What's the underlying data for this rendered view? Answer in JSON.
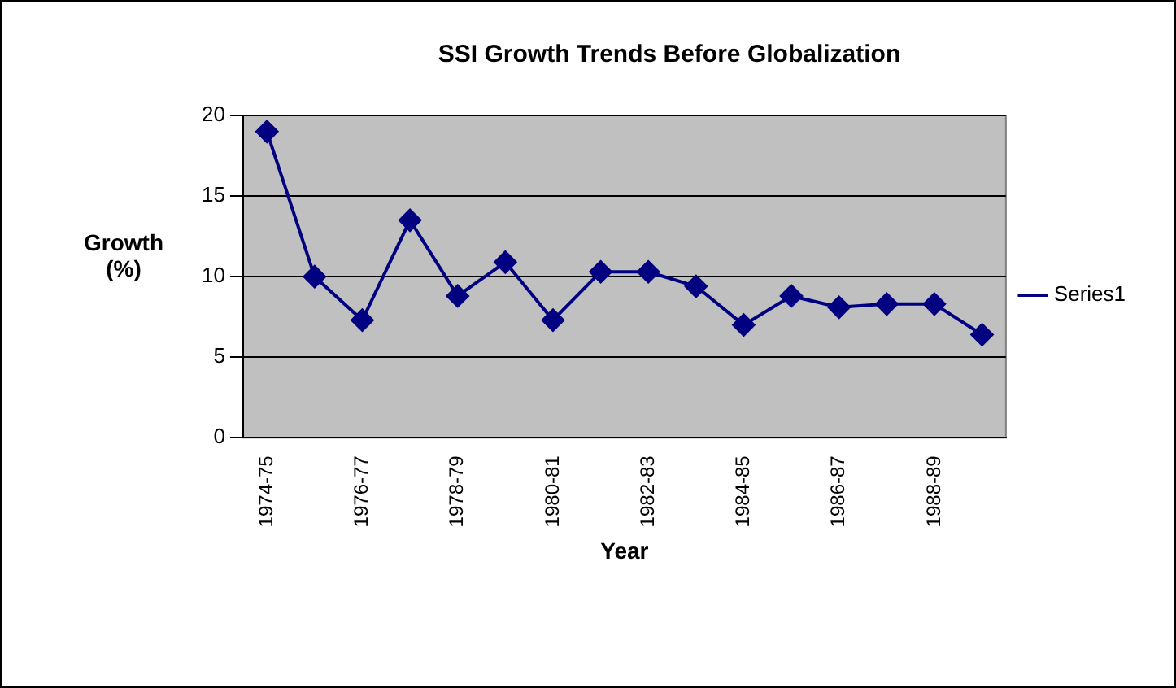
{
  "chart_data": {
    "type": "line",
    "title": "SSI Growth Trends Before Globalization",
    "xlabel": "Year",
    "ylabel": "Growth (%)",
    "categories": [
      "1974-75",
      null,
      "1976-77",
      null,
      "1978-79",
      null,
      "1980-81",
      null,
      "1982-83",
      null,
      "1984-85",
      null,
      "1986-87",
      null,
      "1988-89",
      null
    ],
    "series": [
      {
        "name": "Series1",
        "color": "#000080",
        "values": [
          19,
          10,
          7.3,
          13.5,
          8.8,
          10.9,
          7.3,
          10.3,
          10.3,
          9.4,
          7.0,
          8.8,
          8.1,
          8.3,
          8.3,
          6.4
        ]
      }
    ],
    "ylim": [
      0,
      20
    ],
    "yticks": [
      0,
      5,
      10,
      15,
      20
    ],
    "grid": "y",
    "legend": "right",
    "marker": "diamond",
    "line_style": "solid"
  }
}
